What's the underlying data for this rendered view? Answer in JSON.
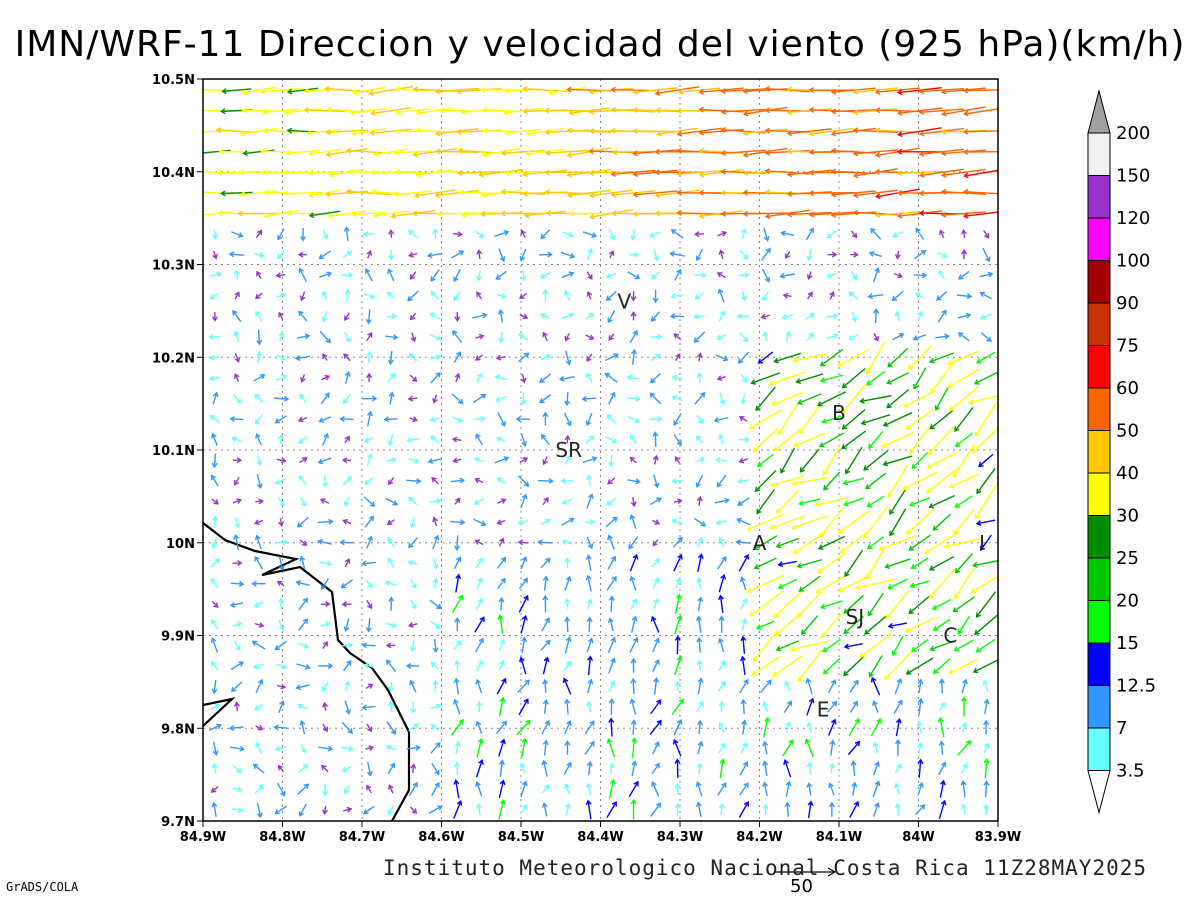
{
  "title": "IMN/WRF-11 Direccion y velocidad del viento (925 hPa)(km/h)",
  "credit": "Instituto Meteorologico Nacional Costa Rica 11Z28MAY2025",
  "grads": "GrADS/COLA",
  "ref_vector_label": "50",
  "axes": {
    "lon_labels": [
      "84.9W",
      "84.8W",
      "84.7W",
      "84.6W",
      "84.5W",
      "84.4W",
      "84.3W",
      "84.2W",
      "84.1W",
      "84W",
      "83.9W"
    ],
    "lat_labels": [
      "10.5N",
      "10.4N",
      "10.3N",
      "10.2N",
      "10.1N",
      "10N",
      "9.9N",
      "9.8N",
      "9.7N"
    ]
  },
  "cities": [
    {
      "code": "V",
      "lon": -84.37,
      "lat": 10.26
    },
    {
      "code": "B",
      "lon": -84.1,
      "lat": 10.14
    },
    {
      "code": "SR",
      "lon": -84.44,
      "lat": 10.1
    },
    {
      "code": "A",
      "lon": -84.2,
      "lat": 10.0
    },
    {
      "code": "I",
      "lon": -83.92,
      "lat": 10.0
    },
    {
      "code": "SJ",
      "lon": -84.08,
      "lat": 9.92
    },
    {
      "code": "C",
      "lon": -83.96,
      "lat": 9.9
    },
    {
      "code": "E",
      "lon": -84.12,
      "lat": 9.82
    }
  ],
  "colorbar": {
    "labels": [
      "200",
      "150",
      "120",
      "100",
      "90",
      "75",
      "60",
      "50",
      "40",
      "30",
      "25",
      "20",
      "15",
      "12.5",
      "7",
      "3.5"
    ],
    "colors": [
      "#a0a0a0",
      "#f0f0f0",
      "#9932cc",
      "#ff00ff",
      "#a00000",
      "#c83200",
      "#ff0000",
      "#ff6400",
      "#ffc800",
      "#ffff00",
      "#008c00",
      "#00c800",
      "#00ff00",
      "#0000ff",
      "#3296ff",
      "#64ffff",
      "#ffffff"
    ]
  },
  "zones": [
    {
      "name": "north-band",
      "lon": [
        -84.9,
        -83.9
      ],
      "lat": [
        10.33,
        10.5
      ],
      "speed": 40,
      "dir": "west"
    },
    {
      "name": "interior",
      "lon": [
        -84.9,
        -83.9
      ],
      "lat": [
        9.7,
        10.33
      ],
      "speed": 8,
      "dir": "variable"
    },
    {
      "name": "central-valley",
      "lon": [
        -84.2,
        -83.9
      ],
      "lat": [
        9.85,
        10.2
      ],
      "speed": 30,
      "dir": "southwest"
    }
  ]
}
